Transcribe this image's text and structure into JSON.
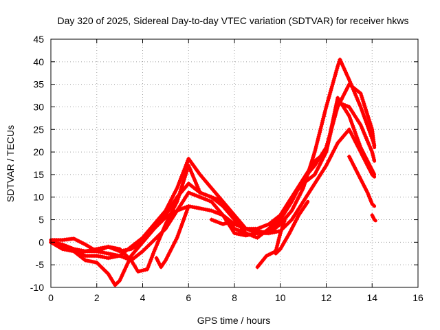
{
  "chart_data": {
    "type": "scatter",
    "title": "Day 320 of 2025, Sidereal Day-to-day VTEC variation (SDTVAR) for receiver hkws",
    "xlabel": "GPS time / hours",
    "ylabel": "SDTVAR / TECUs",
    "xlim": [
      0,
      16
    ],
    "ylim": [
      -10,
      45
    ],
    "xticks": [
      0,
      2,
      4,
      6,
      8,
      10,
      12,
      14,
      16
    ],
    "yticks": [
      -10,
      -5,
      0,
      5,
      10,
      15,
      20,
      25,
      30,
      35,
      40,
      45
    ],
    "grid": true,
    "marker": "+",
    "color": "#ff0000",
    "series": [
      {
        "x": [
          0.0,
          0.5,
          1.0,
          1.5,
          2.0,
          2.5,
          3.0,
          3.5,
          4.0,
          4.5,
          5.0,
          5.5,
          6.0,
          6.5,
          7.0,
          7.5,
          8.0,
          8.5,
          9.0,
          9.5,
          10.0,
          10.5,
          11.0,
          11.5,
          12.0,
          12.5,
          12.6,
          13.0,
          13.5,
          14.0,
          14.1
        ],
        "y": [
          0.5,
          0.5,
          0.8,
          -0.5,
          -2.0,
          -2.5,
          -3.0,
          -1.0,
          1.0,
          4.0,
          7.0,
          12.0,
          18.5,
          15.0,
          12.0,
          9.0,
          6.0,
          3.0,
          2.0,
          2.0,
          4.0,
          7.0,
          12.0,
          20.0,
          30.0,
          39.0,
          40.5,
          36.0,
          30.0,
          23.0,
          21.5
        ]
      },
      {
        "x": [
          0.0,
          0.5,
          1.0,
          1.5,
          2.0,
          2.5,
          3.0,
          3.5,
          4.0,
          4.5,
          5.0,
          5.5,
          6.0,
          6.5,
          7.0,
          7.5,
          8.0,
          8.5,
          9.0,
          9.5,
          10.0,
          10.5,
          11.0,
          11.5,
          12.0,
          12.5,
          13.0,
          13.5,
          14.0,
          14.1
        ],
        "y": [
          0.0,
          -0.5,
          -1.5,
          -2.0,
          -1.5,
          -1.0,
          -2.0,
          -1.5,
          0.0,
          3.0,
          6.0,
          10.0,
          13.0,
          11.0,
          10.0,
          8.0,
          5.0,
          3.0,
          3.0,
          4.0,
          6.0,
          10.0,
          14.0,
          17.0,
          21.0,
          30.0,
          35.0,
          33.0,
          25.0,
          21.0
        ]
      },
      {
        "x": [
          0.0,
          0.5,
          1.0,
          1.5,
          2.0,
          2.5,
          3.0,
          3.5,
          4.0,
          4.5,
          5.0,
          5.5,
          6.0,
          6.5,
          7.0,
          7.5,
          8.0,
          8.5,
          9.0,
          9.5,
          10.0,
          10.5,
          11.0,
          11.5,
          12.0,
          12.5,
          13.0,
          13.5,
          14.0,
          14.1
        ],
        "y": [
          0.0,
          -1.0,
          -1.5,
          -3.0,
          -3.0,
          -3.5,
          -3.0,
          -4.0,
          -2.0,
          0.5,
          3.0,
          7.0,
          11.0,
          10.0,
          9.0,
          6.0,
          2.0,
          1.5,
          2.0,
          2.5,
          5.0,
          9.0,
          14.0,
          18.0,
          20.0,
          31.0,
          30.0,
          26.0,
          20.0,
          18.0
        ]
      },
      {
        "x": [
          0.0,
          0.5,
          1.0,
          1.5,
          2.0,
          2.5,
          3.0,
          3.5,
          3.8,
          4.2,
          4.5,
          5.0,
          5.5,
          6.0,
          6.5,
          7.0,
          7.5,
          8.0,
          8.5,
          9.0,
          9.5,
          10.0,
          10.5,
          11.0,
          11.5,
          12.0,
          12.5,
          13.0,
          13.5,
          14.0,
          14.1
        ],
        "y": [
          0.0,
          -0.5,
          -2.0,
          -2.0,
          -2.0,
          -1.0,
          -1.5,
          -4.0,
          -6.5,
          -6.0,
          -2.0,
          4.0,
          9.0,
          17.0,
          11.0,
          10.0,
          9.0,
          5.0,
          2.0,
          1.0,
          3.0,
          6.0,
          10.0,
          13.0,
          15.0,
          20.0,
          32.0,
          28.0,
          21.0,
          16.0,
          15.0
        ]
      },
      {
        "x": [
          0.0,
          0.5,
          1.0,
          1.5,
          2.0,
          2.5,
          2.8,
          3.0,
          3.5,
          4.0,
          4.5,
          5.0,
          5.5,
          6.0,
          6.5,
          7.0,
          7.5,
          8.0,
          8.5,
          9.0,
          9.5,
          10.0,
          10.5,
          11.0,
          11.5,
          12.0,
          12.5,
          13.0,
          13.5,
          14.0,
          14.1
        ],
        "y": [
          0.0,
          -1.5,
          -2.0,
          -4.0,
          -4.5,
          -7.0,
          -9.5,
          -8.5,
          -3.0,
          0.0,
          3.0,
          5.5,
          7.0,
          8.0,
          7.5,
          7.0,
          6.0,
          4.0,
          3.0,
          2.5,
          2.0,
          2.5,
          5.0,
          9.0,
          13.0,
          17.0,
          22.0,
          25.0,
          20.0,
          15.0,
          14.5
        ]
      },
      {
        "x": [
          4.6,
          4.8,
          5.0,
          5.5,
          6.0
        ],
        "y": [
          -3.5,
          -5.5,
          -4.0,
          1.0,
          8.0
        ]
      },
      {
        "x": [
          7.0,
          7.5,
          7.8,
          8.0,
          8.5
        ],
        "y": [
          5.0,
          4.0,
          4.5,
          3.0,
          2.0
        ]
      },
      {
        "x": [
          9.0,
          9.4,
          9.8,
          10.0,
          10.2
        ],
        "y": [
          -5.5,
          -3.0,
          -2.0,
          2.0,
          5.0
        ]
      },
      {
        "x": [
          9.8,
          10.0,
          10.4,
          10.8,
          11.2
        ],
        "y": [
          -2.5,
          -1.5,
          2.0,
          6.0,
          9.0
        ]
      },
      {
        "x": [
          13.0,
          13.4,
          13.8,
          14.0,
          14.1
        ],
        "y": [
          19.0,
          15.0,
          11.0,
          8.5,
          8.0
        ]
      },
      {
        "x": [
          14.0,
          14.1,
          14.15
        ],
        "y": [
          6.0,
          5.0,
          4.8
        ]
      }
    ]
  }
}
